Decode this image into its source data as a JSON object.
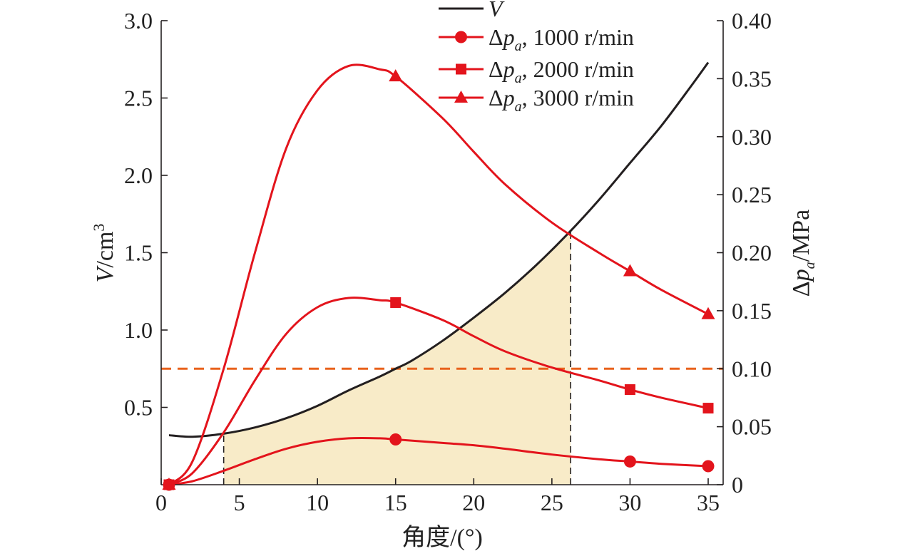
{
  "chart_data": {
    "type": "line",
    "x": {
      "label": "角度/(°)",
      "range": [
        0,
        36
      ],
      "ticks": [
        0,
        5,
        10,
        15,
        20,
        25,
        30,
        35
      ],
      "tick_labels": [
        "0",
        "5",
        "10",
        "15",
        "20",
        "25",
        "30",
        "35"
      ]
    },
    "y_left": {
      "label_italic": "V",
      "label_rest": "/cm",
      "label_sup": "3",
      "range": [
        0,
        3.0
      ],
      "ticks": [
        0.5,
        1.0,
        1.5,
        2.0,
        2.5,
        3.0
      ],
      "tick_labels": [
        "0.5",
        "1.0",
        "1.5",
        "2.0",
        "2.5",
        "3.0"
      ]
    },
    "y_right": {
      "label_delta": "Δ",
      "label_p": "p",
      "label_sub": "a",
      "label_rest": "/MPa",
      "range": [
        0,
        0.4
      ],
      "ticks": [
        0,
        0.05,
        0.1,
        0.15,
        0.2,
        0.25,
        0.3,
        0.35,
        0.4
      ],
      "tick_labels": [
        "0",
        "0.05",
        "0.10",
        "0.15",
        "0.20",
        "0.25",
        "0.30",
        "0.35",
        "0.40"
      ]
    },
    "series": [
      {
        "name": "V",
        "axis": "left",
        "color": "#231f20",
        "marker": "none",
        "curve": [
          [
            0.5,
            0.32
          ],
          [
            2,
            0.31
          ],
          [
            4,
            0.33
          ],
          [
            6,
            0.37
          ],
          [
            8,
            0.43
          ],
          [
            10,
            0.51
          ],
          [
            12,
            0.61
          ],
          [
            14,
            0.7
          ],
          [
            15,
            0.75
          ],
          [
            16,
            0.8
          ],
          [
            18,
            0.93
          ],
          [
            20,
            1.08
          ],
          [
            22,
            1.24
          ],
          [
            24,
            1.42
          ],
          [
            26,
            1.62
          ],
          [
            28,
            1.84
          ],
          [
            30,
            2.08
          ],
          [
            32,
            2.32
          ],
          [
            34,
            2.59
          ],
          [
            35,
            2.73
          ]
        ],
        "points": []
      },
      {
        "name": "1000 r/min",
        "axis": "right",
        "color": "#e3141c",
        "marker": "circle",
        "curve": [
          [
            0.5,
            0
          ],
          [
            2,
            0.003
          ],
          [
            4,
            0.012
          ],
          [
            6,
            0.022
          ],
          [
            8,
            0.031
          ],
          [
            10,
            0.037
          ],
          [
            12,
            0.04
          ],
          [
            14,
            0.04
          ],
          [
            15,
            0.039
          ],
          [
            18,
            0.036
          ],
          [
            20,
            0.034
          ],
          [
            22,
            0.031
          ],
          [
            25,
            0.026
          ],
          [
            28,
            0.022
          ],
          [
            30,
            0.02
          ],
          [
            32,
            0.018
          ],
          [
            35,
            0.016
          ]
        ],
        "points": [
          [
            0.5,
            0
          ],
          [
            15,
            0.039
          ],
          [
            30,
            0.02
          ],
          [
            35,
            0.016
          ]
        ]
      },
      {
        "name": "2000 r/min",
        "axis": "right",
        "color": "#e3141c",
        "marker": "square",
        "curve": [
          [
            0.5,
            0
          ],
          [
            2,
            0.01
          ],
          [
            4,
            0.045
          ],
          [
            6,
            0.09
          ],
          [
            8,
            0.13
          ],
          [
            10,
            0.153
          ],
          [
            12,
            0.161
          ],
          [
            14,
            0.159
          ],
          [
            15,
            0.157
          ],
          [
            18,
            0.142
          ],
          [
            20,
            0.128
          ],
          [
            22,
            0.115
          ],
          [
            25,
            0.101
          ],
          [
            28,
            0.09
          ],
          [
            30,
            0.082
          ],
          [
            32,
            0.075
          ],
          [
            35,
            0.066
          ]
        ],
        "points": [
          [
            0.5,
            0
          ],
          [
            15,
            0.157
          ],
          [
            30,
            0.082
          ],
          [
            35,
            0.066
          ]
        ]
      },
      {
        "name": "3000 r/min",
        "axis": "right",
        "color": "#e3141c",
        "marker": "triangle",
        "curve": [
          [
            0.5,
            0
          ],
          [
            2,
            0.02
          ],
          [
            4,
            0.1
          ],
          [
            6,
            0.2
          ],
          [
            8,
            0.29
          ],
          [
            10,
            0.34
          ],
          [
            12,
            0.361
          ],
          [
            14,
            0.358
          ],
          [
            15,
            0.352
          ],
          [
            18,
            0.316
          ],
          [
            20,
            0.287
          ],
          [
            22,
            0.259
          ],
          [
            25,
            0.226
          ],
          [
            28,
            0.2
          ],
          [
            30,
            0.184
          ],
          [
            32,
            0.168
          ],
          [
            35,
            0.147
          ]
        ],
        "points": [
          [
            0.5,
            0
          ],
          [
            15,
            0.352
          ],
          [
            30,
            0.184
          ],
          [
            35,
            0.147
          ]
        ]
      }
    ],
    "legend": {
      "position": "top",
      "entries": [
        {
          "italic": "V",
          "delta": "",
          "sub": "",
          "suffix": ""
        },
        {
          "italic": "p",
          "delta": "Δ",
          "sub": "a",
          "suffix": ", 1000 r/min"
        },
        {
          "italic": "p",
          "delta": "Δ",
          "sub": "a",
          "suffix": ", 2000 r/min"
        },
        {
          "italic": "p",
          "delta": "Δ",
          "sub": "a",
          "suffix": ", 3000 r/min"
        }
      ]
    },
    "reference_line": {
      "axis": "right",
      "value": 0.1,
      "color": "#e8621c",
      "style": "dashed"
    },
    "shaded_region": {
      "x_range": [
        4,
        26.2
      ],
      "fill": "#f8ebc8",
      "bounded_by": "V",
      "edge_line_color": "#231f20"
    },
    "grid": false
  }
}
